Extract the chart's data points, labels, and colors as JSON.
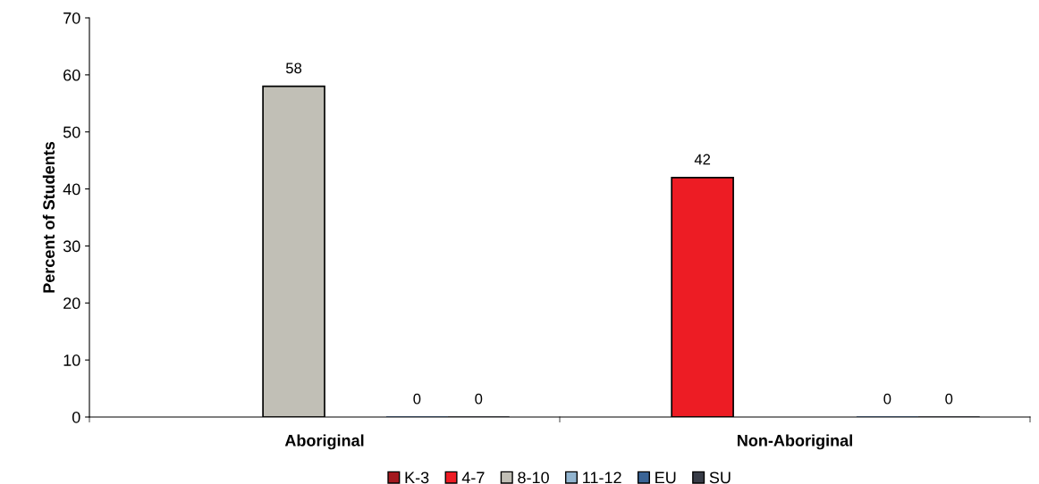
{
  "chart_data": {
    "type": "bar",
    "ylabel": "Percent of Students",
    "categories": [
      "Aboriginal",
      "Non-Aboriginal"
    ],
    "series": [
      {
        "name": "K-3",
        "color": "#a3191f",
        "values": [
          null,
          null
        ]
      },
      {
        "name": "4-7",
        "color": "#ed1c24",
        "values": [
          null,
          42
        ],
        "value_labels": [
          null,
          "42"
        ]
      },
      {
        "name": "8-10",
        "color": "#c1bfb6",
        "values": [
          58,
          null
        ],
        "value_labels": [
          "58",
          null
        ]
      },
      {
        "name": "11-12",
        "color": "#92b4cf",
        "values": [
          null,
          null
        ]
      },
      {
        "name": "EU",
        "color": "#3a6496",
        "values": [
          0,
          0
        ],
        "value_labels": [
          "0",
          "0"
        ]
      },
      {
        "name": "SU",
        "color": "#383c47",
        "values": [
          0,
          0
        ],
        "value_labels": [
          "0",
          "0"
        ]
      }
    ],
    "ylim": [
      0,
      70
    ],
    "yticks": [
      0,
      10,
      20,
      30,
      40,
      50,
      60,
      70
    ],
    "grid": false,
    "legend": "bottom"
  }
}
